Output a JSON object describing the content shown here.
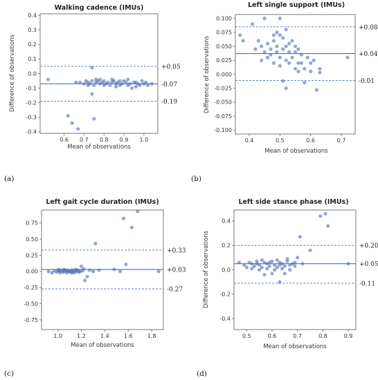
{
  "chart_data": [
    {
      "type": "scatter",
      "panel_label": "(a)",
      "title": "Walking cadence (IMUs)",
      "xlabel": "Mean of observations",
      "ylabel": "Difference of observations",
      "xlim": [
        0.48,
        1.07
      ],
      "ylim": [
        -0.41,
        0.41
      ],
      "xticks": [
        "0.6",
        "0.7",
        "0.8",
        "0.9",
        "1.0"
      ],
      "yticks": [
        "-0.4",
        "-0.3",
        "-0.2",
        "-0.1",
        "0.0",
        "0.1",
        "0.2",
        "0.3",
        "0.4"
      ],
      "mean_line": -0.07,
      "limits": [
        0.05,
        -0.19
      ],
      "right_labels": [
        "+0.05",
        "-0.07",
        "-0.19"
      ],
      "points": [
        [
          0.52,
          -0.04
        ],
        [
          0.62,
          -0.29
        ],
        [
          0.64,
          -0.34
        ],
        [
          0.67,
          -0.38
        ],
        [
          0.74,
          0.04
        ],
        [
          0.75,
          -0.31
        ],
        [
          0.74,
          -0.14
        ],
        [
          0.66,
          -0.06
        ],
        [
          0.68,
          -0.06
        ],
        [
          0.7,
          -0.07
        ],
        [
          0.71,
          -0.05
        ],
        [
          0.72,
          -0.06
        ],
        [
          0.73,
          -0.07
        ],
        [
          0.74,
          -0.05
        ],
        [
          0.75,
          -0.08
        ],
        [
          0.76,
          -0.06
        ],
        [
          0.77,
          -0.05
        ],
        [
          0.78,
          -0.07
        ],
        [
          0.79,
          -0.06
        ],
        [
          0.8,
          -0.05
        ],
        [
          0.81,
          -0.07
        ],
        [
          0.82,
          -0.06
        ],
        [
          0.83,
          -0.08
        ],
        [
          0.84,
          -0.06
        ],
        [
          0.85,
          -0.05
        ],
        [
          0.86,
          -0.07
        ],
        [
          0.87,
          -0.06
        ],
        [
          0.88,
          -0.08
        ],
        [
          0.89,
          -0.07
        ],
        [
          0.9,
          -0.05
        ],
        [
          0.91,
          -0.06
        ],
        [
          0.92,
          -0.08
        ],
        [
          0.93,
          -0.07
        ],
        [
          0.94,
          -0.1
        ],
        [
          0.95,
          -0.06
        ],
        [
          0.96,
          -0.09
        ],
        [
          0.97,
          -0.07
        ],
        [
          0.98,
          -0.08
        ],
        [
          0.99,
          -0.05
        ],
        [
          1.0,
          -0.07
        ],
        [
          1.01,
          -0.06
        ],
        [
          1.02,
          -0.08
        ],
        [
          1.04,
          -0.07
        ],
        [
          0.72,
          -0.08
        ],
        [
          0.76,
          -0.04
        ],
        [
          0.8,
          -0.08
        ],
        [
          0.84,
          -0.04
        ],
        [
          0.88,
          -0.05
        ],
        [
          0.92,
          -0.04
        ],
        [
          0.96,
          -0.06
        ],
        [
          0.78,
          -0.04
        ],
        [
          0.86,
          -0.09
        ]
      ]
    },
    {
      "type": "scatter",
      "panel_label": "(b)",
      "title": "Left single support (IMUs)",
      "xlabel": "Mean of observations",
      "ylabel": "Difference of observations",
      "xlim": [
        0.355,
        0.745
      ],
      "ylim": [
        -0.107,
        0.107
      ],
      "xticks": [
        "0.4",
        "0.5",
        "0.6",
        "0.7"
      ],
      "yticks": [
        "-0.100",
        "-0.075",
        "-0.050",
        "-0.025",
        "0.000",
        "0.025",
        "0.050",
        "0.075",
        "0.100"
      ],
      "mean_line": 0.037,
      "limits": [
        0.085,
        -0.011
      ],
      "right_labels": [
        "+0.08",
        "+0.04",
        "-0.01"
      ],
      "points": [
        [
          0.37,
          0.07
        ],
        [
          0.38,
          0.06
        ],
        [
          0.41,
          0.09
        ],
        [
          0.45,
          0.1
        ],
        [
          0.5,
          0.1
        ],
        [
          0.43,
          0.06
        ],
        [
          0.44,
          0.05
        ],
        [
          0.45,
          0.04
        ],
        [
          0.46,
          0.055
        ],
        [
          0.47,
          0.045
        ],
        [
          0.48,
          0.06
        ],
        [
          0.49,
          0.05
        ],
        [
          0.5,
          0.07
        ],
        [
          0.51,
          0.065
        ],
        [
          0.52,
          0.05
        ],
        [
          0.53,
          0.04
        ],
        [
          0.54,
          0.03
        ],
        [
          0.55,
          0.05
        ],
        [
          0.56,
          0.02
        ],
        [
          0.57,
          0.035
        ],
        [
          0.58,
          0.01
        ],
        [
          0.59,
          0.03
        ],
        [
          0.6,
          0.02
        ],
        [
          0.61,
          0.025
        ],
        [
          0.62,
          -0.028
        ],
        [
          0.63,
          0.003
        ],
        [
          0.63,
          0.01
        ],
        [
          0.72,
          0.03
        ],
        [
          0.46,
          0.03
        ],
        [
          0.48,
          0.02
        ],
        [
          0.5,
          0.015
        ],
        [
          0.52,
          0.025
        ],
        [
          0.54,
          0.06
        ],
        [
          0.56,
          0.045
        ],
        [
          0.58,
          -0.015
        ],
        [
          0.6,
          0.005
        ],
        [
          0.47,
          0.035
        ],
        [
          0.49,
          0.04
        ],
        [
          0.51,
          0.045
        ],
        [
          0.53,
          0.055
        ],
        [
          0.55,
          0.04
        ],
        [
          0.57,
          0.02
        ],
        [
          0.52,
          -0.025
        ],
        [
          0.51,
          -0.012
        ],
        [
          0.44,
          0.025
        ],
        [
          0.42,
          0.045
        ],
        [
          0.5,
          0.03
        ],
        [
          0.53,
          0.02
        ],
        [
          0.55,
          0.01
        ],
        [
          0.48,
          0.07
        ],
        [
          0.52,
          0.08
        ],
        [
          0.49,
          0.075
        ],
        [
          0.56,
          0.005
        ]
      ]
    },
    {
      "type": "scatter",
      "panel_label": "(c)",
      "title": "Left gait cycle duration (IMUs)",
      "xlabel": "Mean of observations",
      "ylabel": "Difference of observations",
      "xlim": [
        0.86,
        1.9
      ],
      "ylim": [
        -0.9,
        0.95
      ],
      "xticks": [
        "1.0",
        "1.2",
        "1.4",
        "1.6",
        "1.8"
      ],
      "yticks": [
        "-0.75",
        "-0.50",
        "-0.25",
        "0.00",
        "0.25",
        "0.50",
        "0.75"
      ],
      "mean_line": 0.03,
      "limits": [
        0.33,
        -0.27
      ],
      "right_labels": [
        "+0.33",
        "+0.03",
        "-0.27"
      ],
      "points": [
        [
          0.92,
          0.0
        ],
        [
          0.95,
          -0.02
        ],
        [
          0.97,
          0.01
        ],
        [
          0.99,
          -0.01
        ],
        [
          1.0,
          0.02
        ],
        [
          1.01,
          0.0
        ],
        [
          1.02,
          -0.02
        ],
        [
          1.03,
          0.01
        ],
        [
          1.04,
          0.0
        ],
        [
          1.05,
          -0.01
        ],
        [
          1.06,
          0.02
        ],
        [
          1.07,
          0.0
        ],
        [
          1.08,
          -0.02
        ],
        [
          1.09,
          0.01
        ],
        [
          1.1,
          0.0
        ],
        [
          1.11,
          -0.01
        ],
        [
          1.12,
          0.02
        ],
        [
          1.13,
          0.0
        ],
        [
          1.14,
          -0.02
        ],
        [
          1.15,
          0.01
        ],
        [
          1.16,
          0.0
        ],
        [
          1.17,
          0.02
        ],
        [
          1.18,
          -0.01
        ],
        [
          1.19,
          0.0
        ],
        [
          1.2,
          0.08
        ],
        [
          1.21,
          0.01
        ],
        [
          1.22,
          0.04
        ],
        [
          1.23,
          -0.14
        ],
        [
          1.25,
          -0.08
        ],
        [
          1.27,
          0.02
        ],
        [
          1.3,
          0.0
        ],
        [
          1.32,
          0.43
        ],
        [
          1.35,
          0.02
        ],
        [
          1.48,
          0.03
        ],
        [
          1.53,
          0.0
        ],
        [
          1.58,
          0.11
        ],
        [
          1.56,
          0.82
        ],
        [
          1.63,
          0.68
        ],
        [
          1.68,
          0.93
        ],
        [
          1.86,
          0.0
        ],
        [
          1.05,
          0.03
        ],
        [
          1.12,
          -0.02
        ],
        [
          1.15,
          0.03
        ],
        [
          1.08,
          0.02
        ],
        [
          1.01,
          0.03
        ]
      ]
    },
    {
      "type": "scatter",
      "panel_label": "(d)",
      "title": "Left side stance phase (IMUs)",
      "xlabel": "Mean of observations",
      "ylabel": "Difference of observations",
      "xlim": [
        0.45,
        0.93
      ],
      "ylim": [
        -0.49,
        0.49
      ],
      "xticks": [
        "0.5",
        "0.6",
        "0.7",
        "0.8",
        "0.9"
      ],
      "yticks": [
        "-0.4",
        "-0.2",
        "0.0",
        "0.2",
        "0.4"
      ],
      "mean_line": 0.05,
      "limits": [
        0.2,
        -0.11
      ],
      "right_labels": [
        "+0.20",
        "+0.05",
        "-0.11"
      ],
      "points": [
        [
          0.47,
          0.06
        ],
        [
          0.49,
          0.04
        ],
        [
          0.5,
          0.02
        ],
        [
          0.51,
          0.06
        ],
        [
          0.52,
          0.05
        ],
        [
          0.53,
          0.03
        ],
        [
          0.54,
          0.07
        ],
        [
          0.55,
          0.04
        ],
        [
          0.56,
          0.02
        ],
        [
          0.57,
          0.06
        ],
        [
          0.58,
          0.05
        ],
        [
          0.59,
          0.03
        ],
        [
          0.6,
          0.07
        ],
        [
          0.61,
          0.04
        ],
        [
          0.62,
          0.02
        ],
        [
          0.63,
          0.06
        ],
        [
          0.64,
          0.05
        ],
        [
          0.65,
          0.03
        ],
        [
          0.66,
          0.07
        ],
        [
          0.67,
          0.04
        ],
        [
          0.68,
          0.05
        ],
        [
          0.69,
          0.03
        ],
        [
          0.7,
          0.1
        ],
        [
          0.71,
          0.27
        ],
        [
          0.75,
          0.16
        ],
        [
          0.79,
          0.44
        ],
        [
          0.81,
          0.46
        ],
        [
          0.82,
          0.36
        ],
        [
          0.9,
          0.05
        ],
        [
          0.57,
          -0.04
        ],
        [
          0.6,
          -0.03
        ],
        [
          0.63,
          -0.1
        ],
        [
          0.65,
          -0.03
        ],
        [
          0.52,
          0.01
        ],
        [
          0.55,
          0.0
        ],
        [
          0.58,
          0.01
        ],
        [
          0.61,
          0.0
        ],
        [
          0.64,
          0.01
        ],
        [
          0.67,
          0.0
        ],
        [
          0.56,
          0.08
        ],
        [
          0.62,
          0.08
        ],
        [
          0.66,
          0.09
        ],
        [
          0.54,
          0.05
        ],
        [
          0.59,
          0.06
        ],
        [
          0.63,
          0.04
        ],
        [
          0.69,
          0.06
        ],
        [
          0.72,
          0.05
        ]
      ]
    }
  ],
  "colors": {
    "point": "#5471b4",
    "mean_line": "#4a6fb5",
    "limit_line": "#4a6fb5"
  }
}
